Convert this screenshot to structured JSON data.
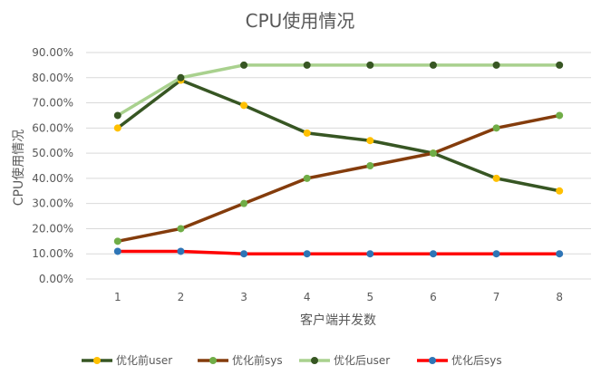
{
  "chart_data": {
    "type": "line",
    "title": "CPU使用情况",
    "xlabel": "客户端并发数",
    "ylabel": "CPU使用情况",
    "categories": [
      "1",
      "2",
      "3",
      "4",
      "5",
      "6",
      "7",
      "8"
    ],
    "ylim": [
      0,
      0.9
    ],
    "yticks": [
      "0.00%",
      "10.00%",
      "20.00%",
      "30.00%",
      "40.00%",
      "50.00%",
      "60.00%",
      "70.00%",
      "80.00%",
      "90.00%"
    ],
    "grid": true,
    "legend_position": "bottom",
    "series": [
      {
        "name": "优化前user",
        "values": [
          0.6,
          0.79,
          0.69,
          0.58,
          0.55,
          0.5,
          0.4,
          0.35
        ],
        "line_color": "#375623",
        "marker_color": "#ffc000"
      },
      {
        "name": "优化前sys",
        "values": [
          0.15,
          0.2,
          0.3,
          0.4,
          0.45,
          0.5,
          0.6,
          0.65
        ],
        "line_color": "#843c0c",
        "marker_color": "#70ad47"
      },
      {
        "name": "优化后user",
        "values": [
          0.65,
          0.8,
          0.85,
          0.85,
          0.85,
          0.85,
          0.85,
          0.85
        ],
        "line_color": "#a9d18e",
        "marker_color": "#375623"
      },
      {
        "name": "优化后sys",
        "values": [
          0.11,
          0.11,
          0.1,
          0.1,
          0.1,
          0.1,
          0.1,
          0.1
        ],
        "line_color": "#ff0000",
        "marker_color": "#2e75b6"
      }
    ]
  }
}
